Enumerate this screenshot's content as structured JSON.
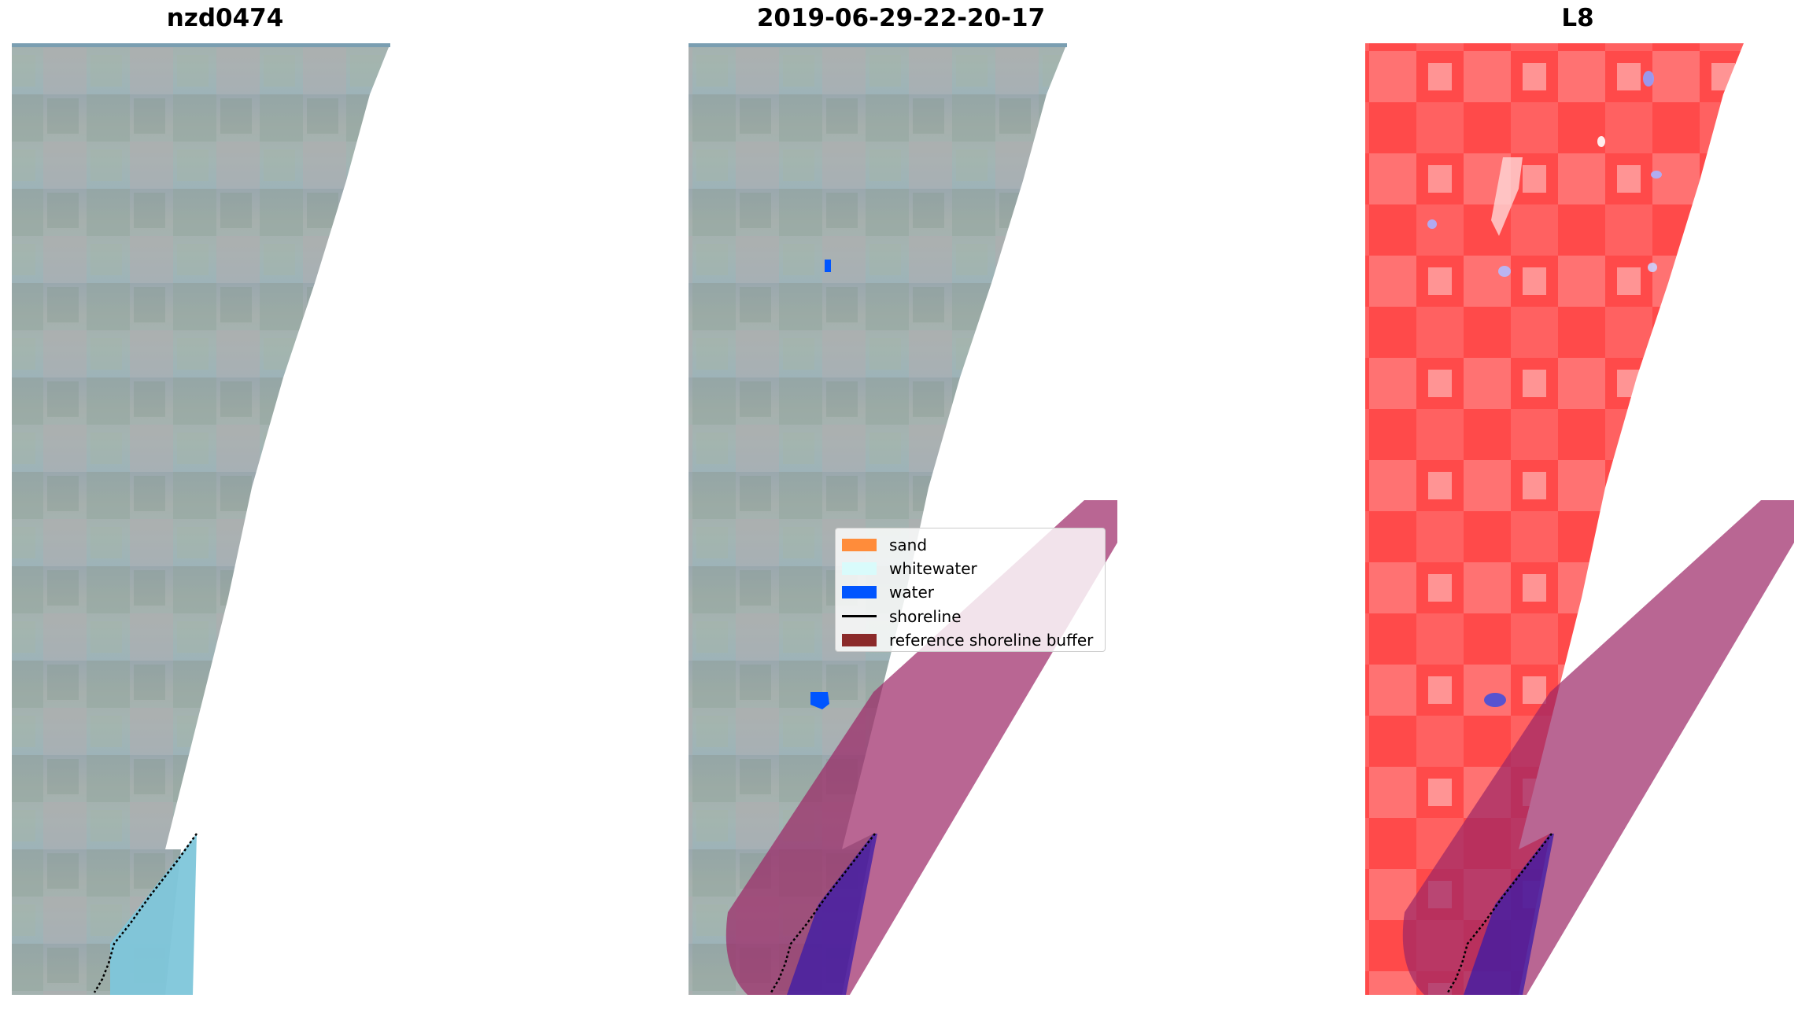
{
  "panels": [
    {
      "title": "nzd0474"
    },
    {
      "title": "2019-06-29-22-20-17"
    },
    {
      "title": "L8"
    }
  ],
  "legend": {
    "items": [
      {
        "label": "sand",
        "color": "#ff8c3a",
        "kind": "patch"
      },
      {
        "label": "whitewater",
        "color": "#d9fbfb",
        "kind": "patch"
      },
      {
        "label": "water",
        "color": "#0055ff",
        "kind": "patch"
      },
      {
        "label": "shoreline",
        "color": "#000000",
        "kind": "line"
      },
      {
        "label": "reference shoreline buffer",
        "color": "#8b2a2a",
        "kind": "patch"
      }
    ]
  },
  "colors": {
    "rgb_base": "#9fb6bd",
    "water_class": "#0055ff",
    "buffer_overlay": "#9b2565",
    "ndwi_red": "#ff3b3b",
    "sea": "#7ec6da"
  }
}
